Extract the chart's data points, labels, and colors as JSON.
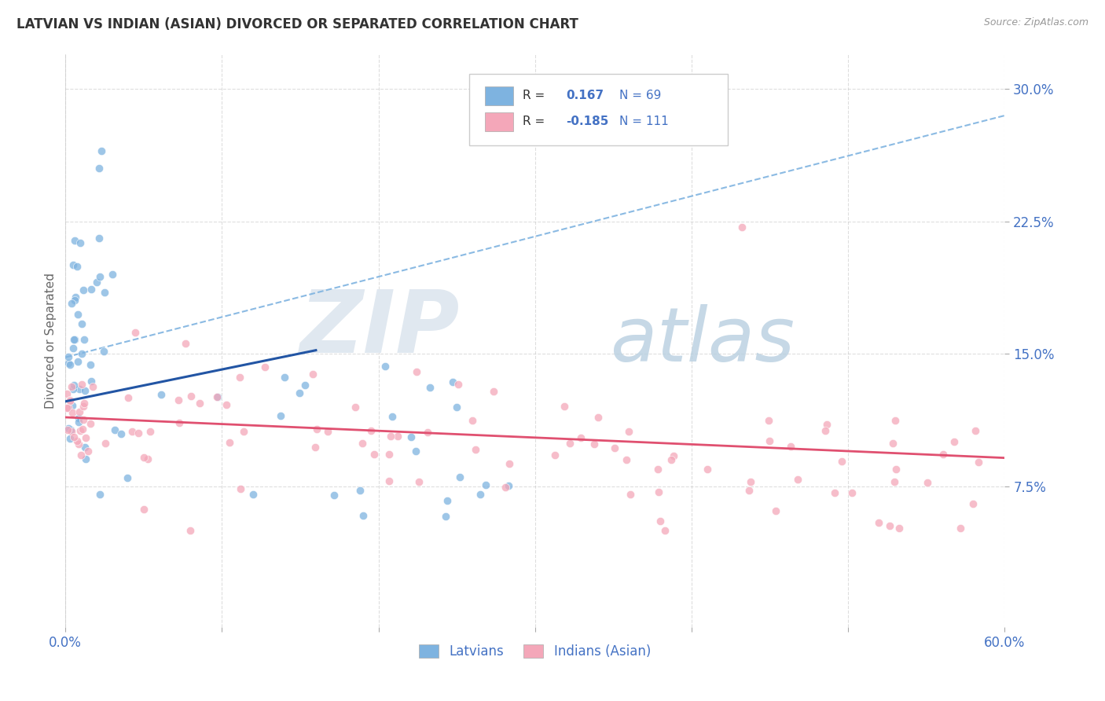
{
  "title": "LATVIAN VS INDIAN (ASIAN) DIVORCED OR SEPARATED CORRELATION CHART",
  "source": "Source: ZipAtlas.com",
  "ylabel": "Divorced or Separated",
  "xlim": [
    0.0,
    0.6
  ],
  "ylim": [
    -0.005,
    0.32
  ],
  "ytick_vals": [
    0.075,
    0.15,
    0.225,
    0.3
  ],
  "ytick_labels": [
    "7.5%",
    "15.0%",
    "22.5%",
    "30.0%"
  ],
  "xtick_vals": [
    0.0,
    0.1,
    0.2,
    0.3,
    0.4,
    0.5,
    0.6
  ],
  "xtick_labels": [
    "0.0%",
    "",
    "",
    "",
    "",
    "",
    "60.0%"
  ],
  "latvian_color": "#7eb3e0",
  "indian_color": "#f4a7b9",
  "latvian_line_color": "#2255a4",
  "indian_line_color": "#e05070",
  "dashed_line_color": "#7eb3e0",
  "R_latvian": 0.167,
  "N_latvian": 69,
  "R_indian": -0.185,
  "N_indian": 111,
  "legend_label_latvian": "Latvians",
  "legend_label_indian": "Indians (Asian)",
  "lat_line_x0": 0.0,
  "lat_line_y0": 0.123,
  "lat_line_x1": 0.16,
  "lat_line_y1": 0.152,
  "dash_line_x0": 0.0,
  "dash_line_y0": 0.148,
  "dash_line_x1": 0.6,
  "dash_line_y1": 0.285,
  "ind_line_x0": 0.0,
  "ind_line_y0": 0.114,
  "ind_line_x1": 0.6,
  "ind_line_y1": 0.091
}
